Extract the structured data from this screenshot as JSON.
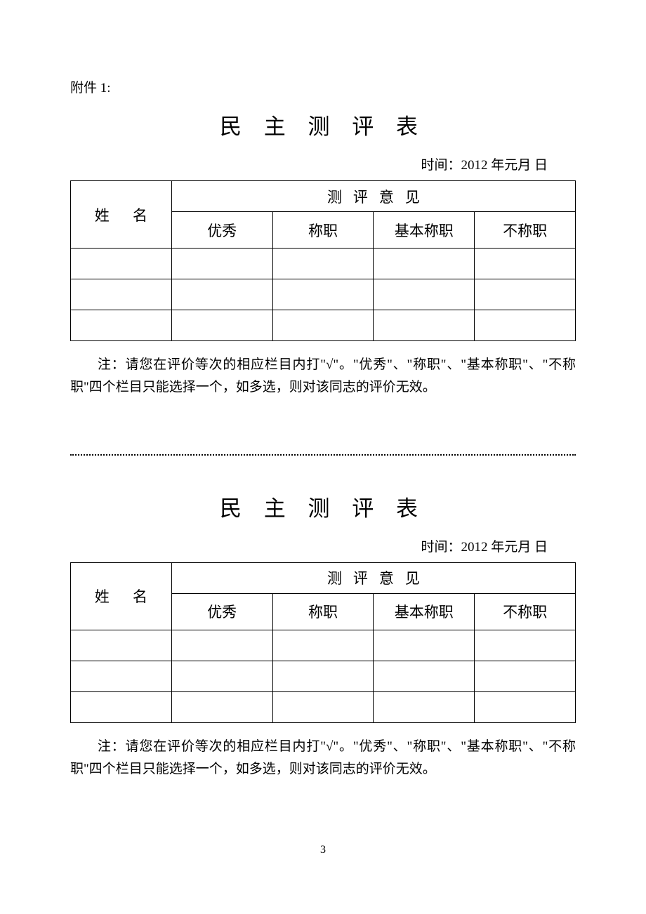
{
  "attachment_label": "附件 1:",
  "title": "民 主 测 评 表",
  "date_label": "时间：2012 年元月   日",
  "table": {
    "name_header": "姓 名",
    "opinion_header": "测评意见",
    "columns": [
      "优秀",
      "称职",
      "基本称职",
      "不称职"
    ],
    "data_row_count": 3
  },
  "note_prefix": "注：请您在评价等次的相应栏目内打\"√\"。\"优秀\"、\"称职\"、\"基本称职\"、\"不称职\"四个栏目只能选择一个，如多选，则对该同志的评价无效。",
  "page_number": "3",
  "styling": {
    "font_family": "SimSun",
    "title_fontsize": 31,
    "body_fontsize": 19,
    "table_fontsize": 21,
    "border_color": "#000000",
    "background_color": "#ffffff",
    "text_color": "#000000",
    "title_letter_spacing": 12,
    "opinion_header_letter_spacing": 16,
    "name_col_letter_spacing": 14,
    "data_row_height": 44,
    "sub_header_height": 52,
    "opinion_header_height": 44
  }
}
